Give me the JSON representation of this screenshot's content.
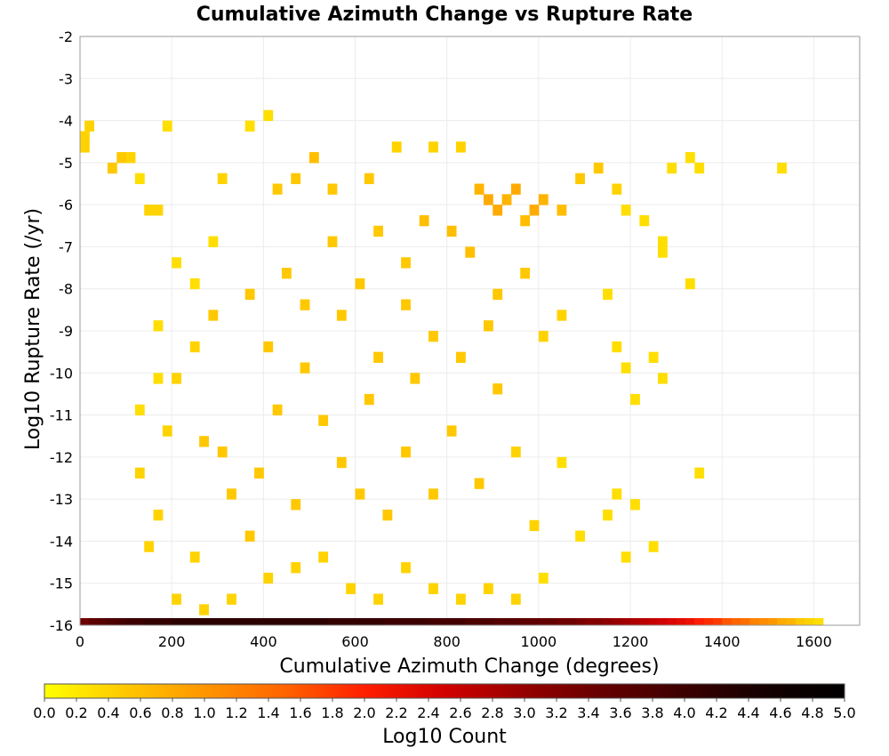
{
  "chart_data": {
    "type": "heatmap",
    "title": "Cumulative Azimuth Change vs Rupture Rate",
    "xlabel": "Cumulative Azimuth Change (degrees)",
    "ylabel": "Log10 Rupture Rate (/yr)",
    "xlim": [
      0,
      1700
    ],
    "ylim": [
      -16,
      -2
    ],
    "x_ticks": [
      0,
      200,
      400,
      600,
      800,
      1000,
      1200,
      1400,
      1600
    ],
    "y_ticks": [
      -2,
      -3,
      -4,
      -5,
      -6,
      -7,
      -8,
      -9,
      -10,
      -11,
      -12,
      -13,
      -14,
      -15,
      -16
    ],
    "x_bin_width": 20,
    "y_bin_height": 0.25,
    "grid": true,
    "colorbar": {
      "label": "Log10 Count",
      "min": 0.0,
      "max": 5.0,
      "ticks": [
        "0.0",
        "0.2",
        "0.4",
        "0.6",
        "0.8",
        "1.0",
        "1.2",
        "1.4",
        "1.6",
        "1.8",
        "2.0",
        "2.2",
        "2.4",
        "2.6",
        "2.8",
        "3.0",
        "3.2",
        "3.4",
        "3.6",
        "3.8",
        "4.0",
        "4.2",
        "4.4",
        "4.6",
        "4.8",
        "5.0"
      ],
      "colors": [
        "#ffff00",
        "#ffc800",
        "#ff9600",
        "#ff6400",
        "#ff1e00",
        "#d20000",
        "#960000",
        "#640000",
        "#3c0000",
        "#140000",
        "#000000"
      ]
    },
    "cells": [
      [
        0,
        -4.5,
        0.4
      ],
      [
        0,
        -4.75,
        0.4
      ],
      [
        10,
        -4.25,
        0.4
      ],
      [
        60,
        -5.25,
        0.5
      ],
      [
        80,
        -5.0,
        0.5
      ],
      [
        100,
        -5.0,
        0.4
      ],
      [
        120,
        -5.5,
        0.3
      ],
      [
        140,
        -6.25,
        0.4
      ],
      [
        160,
        -6.25,
        0.4
      ],
      [
        180,
        -4.25,
        0.3
      ],
      [
        200,
        -7.5,
        0.3
      ],
      [
        240,
        -8.0,
        0.3
      ],
      [
        280,
        -7.0,
        0.3
      ],
      [
        300,
        -5.5,
        0.4
      ],
      [
        360,
        -4.25,
        0.3
      ],
      [
        400,
        -4.0,
        0.3
      ],
      [
        420,
        -5.75,
        0.5
      ],
      [
        460,
        -5.5,
        0.5
      ],
      [
        500,
        -5.0,
        0.6
      ],
      [
        540,
        -5.75,
        0.5
      ],
      [
        620,
        -5.5,
        0.5
      ],
      [
        680,
        -4.75,
        0.4
      ],
      [
        760,
        -4.75,
        0.4
      ],
      [
        820,
        -4.75,
        0.4
      ],
      [
        860,
        -5.75,
        0.7
      ],
      [
        880,
        -6.0,
        0.8
      ],
      [
        900,
        -6.25,
        0.8
      ],
      [
        920,
        -6.0,
        0.7
      ],
      [
        940,
        -5.75,
        0.8
      ],
      [
        960,
        -6.5,
        0.6
      ],
      [
        980,
        -6.25,
        0.8
      ],
      [
        1000,
        -6.0,
        0.7
      ],
      [
        1040,
        -6.25,
        0.6
      ],
      [
        1080,
        -5.5,
        0.5
      ],
      [
        1120,
        -5.25,
        0.5
      ],
      [
        1160,
        -5.75,
        0.4
      ],
      [
        1180,
        -6.25,
        0.3
      ],
      [
        1220,
        -6.5,
        0.3
      ],
      [
        1260,
        -7.0,
        0.3
      ],
      [
        1280,
        -5.25,
        0.3
      ],
      [
        1320,
        -5.0,
        0.3
      ],
      [
        1340,
        -5.25,
        0.3
      ],
      [
        1520,
        -5.25,
        0.3
      ],
      [
        1320,
        -8.0,
        0.3
      ],
      [
        1260,
        -7.25,
        0.3
      ],
      [
        1140,
        -8.25,
        0.3
      ],
      [
        1160,
        -9.5,
        0.3
      ],
      [
        1240,
        -9.75,
        0.3
      ],
      [
        1180,
        -10.0,
        0.3
      ],
      [
        1200,
        -10.75,
        0.3
      ],
      [
        1260,
        -10.25,
        0.3
      ],
      [
        1340,
        -12.5,
        0.3
      ],
      [
        1200,
        -13.25,
        0.3
      ],
      [
        1240,
        -14.25,
        0.3
      ],
      [
        1180,
        -14.5,
        0.3
      ],
      [
        1160,
        -13.0,
        0.3
      ],
      [
        1140,
        -13.5,
        0.3
      ],
      [
        1080,
        -14.0,
        0.3
      ],
      [
        1040,
        -12.25,
        0.3
      ],
      [
        1000,
        -15.0,
        0.3
      ],
      [
        900,
        -8.25,
        0.5
      ],
      [
        880,
        -9.0,
        0.5
      ],
      [
        760,
        -9.25,
        0.5
      ],
      [
        700,
        -8.5,
        0.5
      ],
      [
        640,
        -9.75,
        0.5
      ],
      [
        560,
        -8.75,
        0.5
      ],
      [
        480,
        -10.0,
        0.5
      ],
      [
        420,
        -11.0,
        0.5
      ],
      [
        380,
        -12.5,
        0.5
      ],
      [
        320,
        -13.0,
        0.5
      ],
      [
        300,
        -12.0,
        0.5
      ],
      [
        260,
        -11.75,
        0.5
      ],
      [
        200,
        -10.25,
        0.4
      ],
      [
        180,
        -11.5,
        0.4
      ],
      [
        160,
        -13.5,
        0.4
      ],
      [
        140,
        -14.25,
        0.4
      ],
      [
        120,
        -12.5,
        0.4
      ],
      [
        120,
        -11.0,
        0.3
      ],
      [
        160,
        -9.0,
        0.3
      ],
      [
        160,
        -10.25,
        0.3
      ],
      [
        200,
        -15.5,
        0.4
      ],
      [
        260,
        -15.75,
        0.4
      ],
      [
        320,
        -15.5,
        0.4
      ],
      [
        400,
        -15.0,
        0.4
      ],
      [
        460,
        -14.75,
        0.4
      ],
      [
        520,
        -14.5,
        0.4
      ],
      [
        580,
        -15.25,
        0.4
      ],
      [
        640,
        -15.5,
        0.4
      ],
      [
        700,
        -14.75,
        0.4
      ],
      [
        760,
        -15.25,
        0.4
      ],
      [
        820,
        -15.5,
        0.4
      ],
      [
        880,
        -15.25,
        0.4
      ],
      [
        940,
        -15.5,
        0.4
      ],
      [
        980,
        -13.75,
        0.4
      ],
      [
        600,
        -13.0,
        0.5
      ],
      [
        700,
        -12.0,
        0.5
      ],
      [
        800,
        -11.5,
        0.5
      ],
      [
        900,
        -10.5,
        0.5
      ],
      [
        1000,
        -9.25,
        0.4
      ],
      [
        1040,
        -8.75,
        0.4
      ],
      [
        960,
        -7.75,
        0.5
      ],
      [
        840,
        -7.25,
        0.6
      ],
      [
        740,
        -6.5,
        0.6
      ],
      [
        640,
        -6.75,
        0.5
      ],
      [
        540,
        -7.0,
        0.5
      ],
      [
        440,
        -7.75,
        0.5
      ],
      [
        360,
        -8.25,
        0.5
      ],
      [
        280,
        -8.75,
        0.5
      ],
      [
        240,
        -9.5,
        0.4
      ],
      [
        520,
        -11.25,
        0.5
      ],
      [
        620,
        -10.75,
        0.5
      ],
      [
        720,
        -10.25,
        0.5
      ],
      [
        820,
        -9.75,
        0.5
      ],
      [
        560,
        -12.25,
        0.5
      ],
      [
        660,
        -13.5,
        0.5
      ],
      [
        760,
        -13.0,
        0.5
      ],
      [
        860,
        -12.75,
        0.5
      ],
      [
        940,
        -12.0,
        0.4
      ],
      [
        460,
        -13.25,
        0.5
      ],
      [
        360,
        -14.0,
        0.5
      ],
      [
        240,
        -14.5,
        0.4
      ],
      [
        400,
        -9.5,
        0.5
      ],
      [
        480,
        -8.5,
        0.5
      ],
      [
        600,
        -8.0,
        0.5
      ],
      [
        700,
        -7.5,
        0.5
      ],
      [
        800,
        -6.75,
        0.6
      ]
    ],
    "bottom_row": {
      "y": -16.0,
      "x_start": 0,
      "x_end": 1620,
      "values": [
        3.4,
        3.6,
        3.7,
        3.8,
        3.9,
        4.0,
        4.0,
        4.1,
        4.1,
        4.1,
        4.2,
        4.2,
        4.2,
        4.2,
        4.2,
        4.2,
        4.2,
        4.2,
        4.2,
        4.2,
        4.2,
        4.2,
        4.2,
        4.2,
        4.2,
        4.2,
        4.2,
        4.1,
        4.1,
        4.1,
        4.1,
        4.1,
        4.1,
        4.0,
        4.0,
        4.0,
        4.0,
        4.0,
        3.9,
        3.9,
        3.9,
        3.9,
        3.8,
        3.8,
        3.8,
        3.7,
        3.7,
        3.7,
        3.6,
        3.6,
        3.5,
        3.5,
        3.4,
        3.4,
        3.3,
        3.2,
        3.2,
        3.1,
        3.0,
        2.9,
        2.8,
        2.7,
        2.6,
        2.5,
        2.4,
        2.3,
        2.2,
        2.0,
        1.9,
        1.8,
        1.6,
        1.5,
        1.4,
        1.2,
        1.1,
        1.0,
        0.8,
        0.7,
        0.5,
        0.4,
        0.3
      ]
    }
  }
}
